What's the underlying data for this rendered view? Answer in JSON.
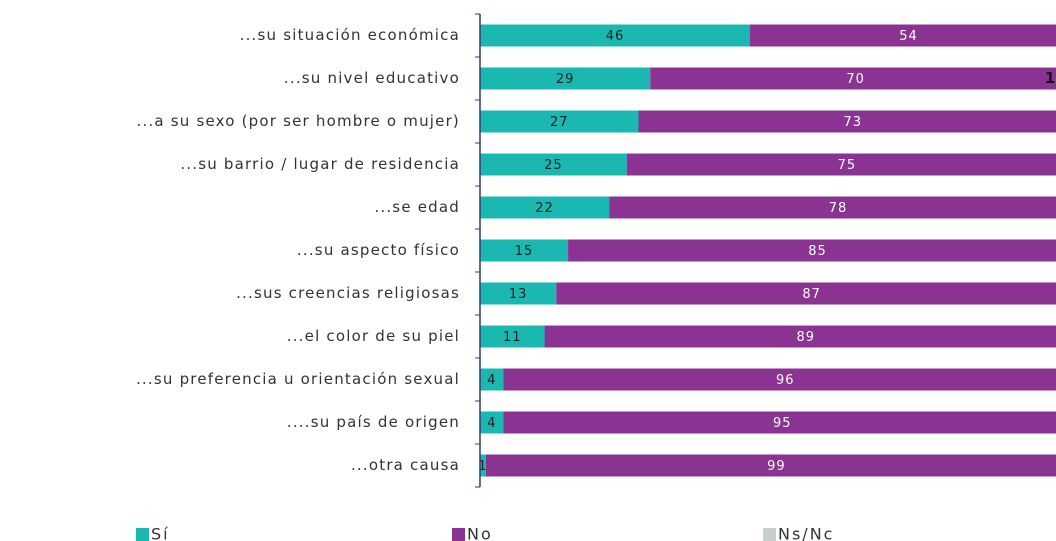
{
  "chart_data": {
    "type": "stacked-barh",
    "categories": [
      "...su situación económica",
      "...su nivel educativo",
      "...a su sexo (por ser hombre o mujer)",
      "...su barrio / lugar de residencia",
      "...se edad",
      "...su aspecto físico",
      "...sus creencias religiosas",
      "...el color de su piel",
      "...su preferencia u orientación sexual",
      "....su país de origen",
      "...otra causa"
    ],
    "series": [
      {
        "name": "Sí",
        "color": "#1ab8b0",
        "values": [
          46,
          29,
          27,
          25,
          22,
          15,
          13,
          11,
          4,
          4,
          1
        ]
      },
      {
        "name": "No",
        "color": "#8b3393",
        "values": [
          54,
          70,
          73,
          75,
          78,
          85,
          87,
          89,
          96,
          95,
          99
        ]
      },
      {
        "name": "Ns/Nc",
        "color": "#c8cdd0",
        "values": [
          0,
          1,
          0,
          0,
          0,
          0,
          0,
          0,
          0,
          1,
          0
        ],
        "value_labels": [
          null,
          "1",
          null,
          null,
          null,
          null,
          null,
          null,
          null,
          null,
          null
        ]
      }
    ],
    "xlim": [
      0,
      100
    ]
  }
}
